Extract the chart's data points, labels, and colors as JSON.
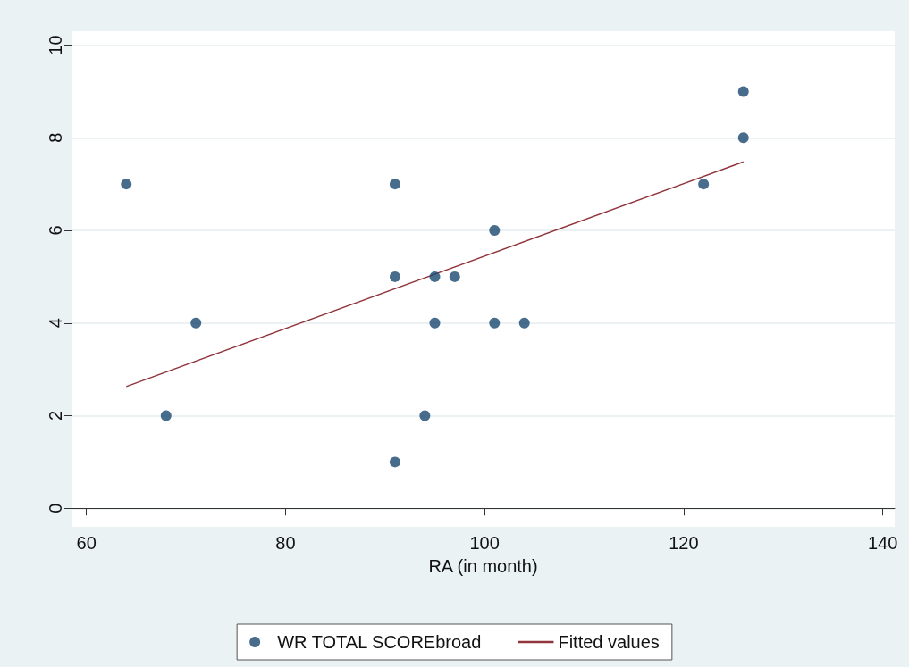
{
  "chart_data": {
    "type": "scatter",
    "xlabel": "RA (in month)",
    "xlim": [
      58.5,
      141.2
    ],
    "xticks": [
      60,
      80,
      100,
      120,
      140
    ],
    "ylim": [
      -0.4,
      10.3
    ],
    "yticks": [
      0,
      2,
      4,
      6,
      8,
      10
    ],
    "grid": "y",
    "legend": "bottom",
    "marker": "circle",
    "series": [
      {
        "name": "WR TOTAL SCOREbroad",
        "color": "#1a476f",
        "x": [
          64,
          71,
          68,
          91,
          91,
          91,
          94,
          95,
          95,
          97,
          101,
          101,
          104,
          122,
          126,
          126
        ],
        "values": [
          7,
          4,
          2,
          7,
          5,
          1,
          2,
          5,
          4,
          5,
          6,
          4,
          4,
          7,
          8,
          9
        ]
      },
      {
        "name": "Fitted values",
        "type": "line",
        "color": "#90353b",
        "marker": "none",
        "x": [
          64,
          126
        ],
        "values": [
          2.63,
          7.48
        ]
      }
    ]
  }
}
